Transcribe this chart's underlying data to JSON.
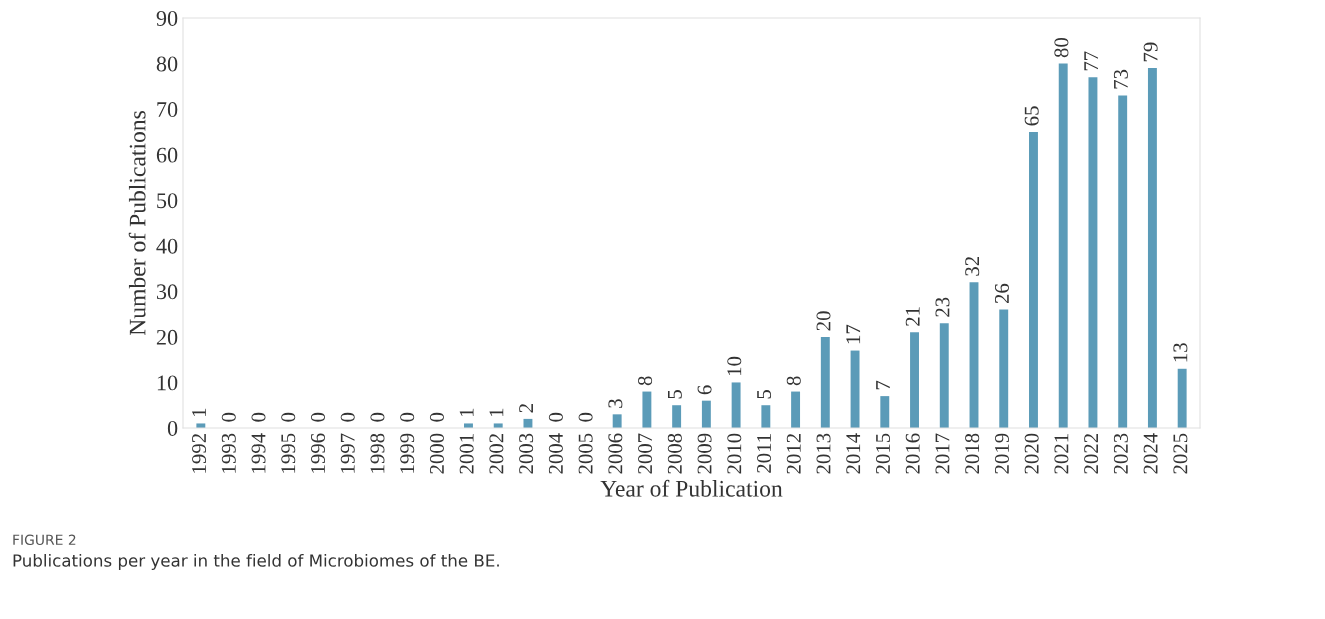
{
  "chart_data": {
    "type": "bar",
    "xlabel": "Year of Publication",
    "ylabel": "Number of Publications",
    "categories": [
      "1992",
      "1993",
      "1994",
      "1995",
      "1996",
      "1997",
      "1998",
      "1999",
      "2000",
      "2001",
      "2002",
      "2003",
      "2004",
      "2005",
      "2006",
      "2007",
      "2008",
      "2009",
      "2010",
      "2011",
      "2012",
      "2013",
      "2014",
      "2015",
      "2016",
      "2017",
      "2018",
      "2019",
      "2020",
      "2021",
      "2022",
      "2023",
      "2024",
      "2025"
    ],
    "values": [
      1,
      0,
      0,
      0,
      0,
      0,
      0,
      0,
      0,
      1,
      1,
      2,
      0,
      0,
      3,
      8,
      5,
      6,
      10,
      5,
      8,
      20,
      17,
      7,
      21,
      23,
      32,
      26,
      65,
      80,
      77,
      73,
      79,
      13
    ],
    "color": "#5b9bb8",
    "ylim": [
      0,
      90
    ],
    "yticks": [
      0,
      10,
      20,
      30,
      40,
      50,
      60,
      70,
      80,
      90
    ],
    "grid": false,
    "data_labels": true,
    "annotations": [
      "FIGURE 2",
      "Publications per year in the field of Microbiomes of the BE."
    ]
  }
}
